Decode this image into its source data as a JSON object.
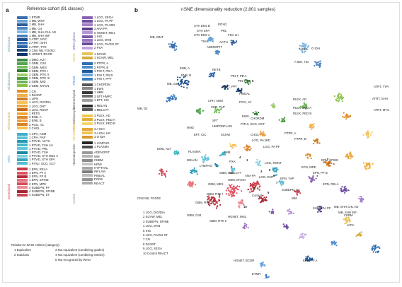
{
  "panel_a": {
    "letter": "a",
    "title": "Reference cohort (91 classes)",
    "groups": [
      {
        "name": "Embryonal",
        "color": "#5fa3a8",
        "col": 0,
        "top": 15,
        "height": 48
      },
      {
        "name": "Glioblastoma",
        "color": "#5fa3a8",
        "col": 0,
        "top": 73,
        "height": 45
      },
      {
        "name": "Glioneuronal",
        "color": "#e09a3a",
        "col": 0,
        "top": 126,
        "height": 48
      },
      {
        "name": "Sella",
        "color": "#4aa0d8",
        "col": 0,
        "top": 180,
        "height": 40
      },
      {
        "name": "Ependymal",
        "color": "#d6404f",
        "col": 0,
        "top": 228,
        "height": 44
      },
      {
        "name": "Other glioma",
        "color": "#7a5fa8",
        "col": 1,
        "top": 15,
        "height": 46
      },
      {
        "name": "Nerve",
        "color": "#e0b248",
        "col": 1,
        "top": 65,
        "height": 12
      },
      {
        "name": "Pineal",
        "color": "#3e85c8",
        "col": 1,
        "top": 85,
        "height": 25
      },
      {
        "name": "Mesenchymal",
        "color": "#4a4a4a",
        "col": 1,
        "top": 116,
        "height": 28
      },
      {
        "name": "Melanocytic",
        "color": "#4a4a4a",
        "col": 1,
        "top": 145,
        "height": 20
      },
      {
        "name": "Plexus",
        "color": "#e0b248",
        "col": 1,
        "top": 162,
        "height": 14
      },
      {
        "name": "Glioma IDH",
        "color": "#e0b248",
        "col": 1,
        "top": 177,
        "height": 12
      },
      {
        "name": "Haematopoietic",
        "color": "#4a4a4a",
        "col": 1,
        "top": 196,
        "height": 28
      },
      {
        "name": "Control",
        "color": "#8c8c8c",
        "col": 1,
        "top": 226,
        "height": 52
      }
    ],
    "col0": [
      {
        "n": "1",
        "label": "ETMR",
        "color": "#3a6fb0"
      },
      {
        "n": "1",
        "label": "MB, WNT",
        "color": "#6aa4d8"
      },
      {
        "n": "1",
        "label": "MB, SHH",
        "color": "#2e5d9a"
      },
      {
        "n": "1",
        "label": "MB, G4",
        "color": "#5289c4"
      },
      {
        "n": "1",
        "label": "MB, SHH CHL AD",
        "color": "#7fb7e2"
      },
      {
        "n": "1",
        "label": "MB, SHH INF",
        "color": "#4a7fbe"
      },
      {
        "n": "2",
        "label": "ATRT, MYC",
        "color": "#1e4f8a"
      },
      {
        "n": "2",
        "label": "ATRT, SHH",
        "color": "#3574ba"
      },
      {
        "n": "2",
        "label": "ATRT, TYR",
        "color": "#2f65a6"
      },
      {
        "n": "3",
        "label": "CNS NB, FOXR2",
        "color": "#154173"
      },
      {
        "n": "5",
        "label": "HGNET, BCOR",
        "color": "#0d3366"
      },
      {
        "n": "",
        "label": "",
        "color": ""
      },
      {
        "n": "1",
        "label": "DMG, K27",
        "color": "#3d8a3f"
      },
      {
        "n": "2",
        "label": "GBM, G34",
        "color": "#55a64f"
      },
      {
        "n": "2",
        "label": "GBM, MES",
        "color": "#78bd5c"
      },
      {
        "n": "2",
        "label": "GBM, RTK I",
        "color": "#2f7a33"
      },
      {
        "n": "2",
        "label": "GBM, RTK II",
        "color": "#9ccd6e"
      },
      {
        "n": "2",
        "label": "GBM, RTK III",
        "color": "#4e9c40"
      },
      {
        "n": "2",
        "label": "GBM, MID",
        "color": "#6cb45a"
      },
      {
        "n": "2",
        "label": "GBM, MYCN",
        "color": "#8bc34a"
      },
      {
        "n": "",
        "label": "",
        "color": ""
      },
      {
        "n": "1",
        "label": "CN",
        "color": "#e0902a"
      },
      {
        "n": "1",
        "label": "DLGNT",
        "color": "#f0b043"
      },
      {
        "n": "1",
        "label": "LIPN",
        "color": "#d27a20"
      },
      {
        "n": "1",
        "label": "LGG, DIG/DIA",
        "color": "#f5c45a"
      },
      {
        "n": "1",
        "label": "LGG, DNT",
        "color": "#e8a53b"
      },
      {
        "n": "1",
        "label": "LGG, RGNT",
        "color": "#c96c18"
      },
      {
        "n": "1",
        "label": "RETB",
        "color": "#f2a93a"
      },
      {
        "n": "2",
        "label": "ENB, A",
        "color": "#dd8a2a"
      },
      {
        "n": "2",
        "label": "ENB, B",
        "color": "#eba044"
      },
      {
        "n": "2",
        "label": "PGG, nC",
        "color": "#d98328"
      },
      {
        "n": "2",
        "label": "CHGL",
        "color": "#f7c14f"
      },
      {
        "n": "",
        "label": "",
        "color": ""
      },
      {
        "n": "1",
        "label": "CPH, ADM",
        "color": "#3fb0c9"
      },
      {
        "n": "1",
        "label": "CPH, PAP",
        "color": "#5cc0d7"
      },
      {
        "n": "1",
        "label": "PITAD, ACTH",
        "color": "#2a9bb6"
      },
      {
        "n": "1",
        "label": "PITAD, FSH LH",
        "color": "#45b6c8"
      },
      {
        "n": "1",
        "label": "PITAD, PRL",
        "color": "#66c6da"
      },
      {
        "n": "1",
        "label": "PITAD, TSH",
        "color": "#1f8aa3"
      },
      {
        "n": "1",
        "label": "PITAD, STH DNS A",
        "color": "#7fd0df"
      },
      {
        "n": "1",
        "label": "PITAD, STH SPA",
        "color": "#3aa5bd"
      },
      {
        "n": "1",
        "label": "PITUI, SCO, GCT",
        "color": "#56bccf"
      },
      {
        "n": "",
        "label": "",
        "color": ""
      },
      {
        "n": "1",
        "label": "EPN, RELA",
        "color": "#c83a47"
      },
      {
        "n": "1",
        "label": "EPN, PF A",
        "color": "#e05262"
      },
      {
        "n": "2",
        "label": "EPN, PF B",
        "color": "#b82d3a"
      },
      {
        "n": "1",
        "label": "EPN, SPINE",
        "color": "#e8707c"
      },
      {
        "n": "2",
        "label": "EPN, MPE",
        "color": "#d44a58"
      },
      {
        "n": "4",
        "label": "SUBEPN, PF",
        "color": "#f08a95"
      },
      {
        "n": "4",
        "label": "SUBEPN, SPINE",
        "color": "#a82532"
      },
      {
        "n": "4",
        "label": "SUBEPN, ST",
        "color": "#cc4352"
      }
    ],
    "col1": [
      {
        "n": "1",
        "label": "LGG, SEGA",
        "color": "#8a63b3"
      },
      {
        "n": "1",
        "label": "LGG, PA PF",
        "color": "#6d4ea0"
      },
      {
        "n": "1",
        "label": "LGG, PA MID",
        "color": "#a27ec7"
      },
      {
        "n": "2",
        "label": "ANA PA",
        "color": "#5c3f8e"
      },
      {
        "n": "5",
        "label": "HGNET, MN1",
        "color": "#b496d6"
      },
      {
        "n": "1",
        "label": "IHG",
        "color": "#7d58ab"
      },
      {
        "n": "1",
        "label": "LGG, MYB",
        "color": "#9a74c2"
      },
      {
        "n": "1",
        "label": "LGG, PA/GG ST",
        "color": "#6a4a9a"
      },
      {
        "n": "2",
        "label": "PXA",
        "color": "#c3a6e0"
      },
      {
        "n": "",
        "label": "",
        "color": ""
      },
      {
        "n": "1",
        "label": "SCHW",
        "color": "#e8c35a"
      },
      {
        "n": "1",
        "label": "SCHW, MEL",
        "color": "#d4ad3e"
      },
      {
        "n": "",
        "label": "",
        "color": ""
      },
      {
        "n": "2",
        "label": "PTPR, A",
        "color": "#2f6fb3"
      },
      {
        "n": "2",
        "label": "PTPR, B",
        "color": "#4a8bcb"
      },
      {
        "n": "1",
        "label": "PIN T, PB A",
        "color": "#1f5a9a"
      },
      {
        "n": "1",
        "label": "PIN T, PB B",
        "color": "#6aa3d9"
      },
      {
        "n": "1",
        "label": "PIN T, PPT",
        "color": "#3a7ec0"
      },
      {
        "n": "",
        "label": "",
        "color": ""
      },
      {
        "n": "1",
        "label": "CHORDM",
        "color": "#555555"
      },
      {
        "n": "1",
        "label": "EWS",
        "color": "#8a8a8a"
      },
      {
        "n": "1",
        "label": "HMB",
        "color": "#3a3a3a"
      },
      {
        "n": "3",
        "label": "SFT HMPC",
        "color": "#6f6f6f"
      },
      {
        "n": "1",
        "label": "EFT, CIC",
        "color": "#a0a0a0"
      },
      {
        "n": "",
        "label": "",
        "color": ""
      },
      {
        "n": "1",
        "label": "MELAN",
        "color": "#2b2b2b"
      },
      {
        "n": "1",
        "label": "MELCYT",
        "color": "#5a5a5a"
      },
      {
        "n": "",
        "label": "",
        "color": ""
      },
      {
        "n": "3",
        "label": "PLEX, AD",
        "color": "#f0c64a"
      },
      {
        "n": "3",
        "label": "PLEX, PED A",
        "color": "#e0b03a"
      },
      {
        "n": "3",
        "label": "PLEX, PED B",
        "color": "#f5d46e"
      },
      {
        "n": "",
        "label": "",
        "color": ""
      },
      {
        "n": "3",
        "label": "A IDH",
        "color": "#e3a73a"
      },
      {
        "n": "3",
        "label": "A IDH, HG",
        "color": "#f1c150"
      },
      {
        "n": "3",
        "label": "O IDH",
        "color": "#d89a2c"
      },
      {
        "n": "",
        "label": "",
        "color": ""
      },
      {
        "n": "1",
        "label": "LYMPHO",
        "color": "#262626"
      },
      {
        "n": "1",
        "label": "PLASMA",
        "color": "#4d4d4d"
      },
      {
        "n": "",
        "label": "",
        "color": ""
      },
      {
        "n": "",
        "label": "ADENOPIT",
        "color": "#9a9a9a"
      },
      {
        "n": "",
        "label": "WM",
        "color": "#b5b5b5"
      },
      {
        "n": "",
        "label": "CEBM",
        "color": "#8c8c8c"
      },
      {
        "n": "",
        "label": "HEMI",
        "color": "#c4c4c4"
      },
      {
        "n": "",
        "label": "HYPTHAL",
        "color": "#a6a6a6"
      },
      {
        "n": "",
        "label": "INFLAM",
        "color": "#7d7d7d"
      },
      {
        "n": "",
        "label": "PINEAL",
        "color": "#bdbdbd"
      },
      {
        "n": "",
        "label": "PONS",
        "color": "#959595"
      },
      {
        "n": "",
        "label": "REACT",
        "color": "#adadad"
      }
    ],
    "legend": {
      "title": "Relation to WHO entities (category):",
      "rows": [
        {
          "text": "1  Equivalent"
        },
        {
          "text": "3  Not equivalent (combining grades)"
        },
        {
          "text": "2  Subclass"
        },
        {
          "text": "4  Not equivalent (combining entities)"
        },
        {
          "text": "5  Not recognized by WHO"
        }
      ]
    }
  },
  "panel_b": {
    "letter": "b",
    "title_prefix": "t",
    "title_rest": "-SNE dimensionality reduction (2,801 samples)",
    "key": [
      "1  LGG, DIG/DIA",
      "2  SCHW, MEL",
      "3  SUBEPN, SPINE",
      "4  LGG, MYB",
      "5  IHG",
      "6  LGG, PA/GG ST",
      "7  CN",
      "8  DLGNT",
      "9  LGG, SEGA",
      "10  Control REACT"
    ],
    "labels": [
      "MB, WNT",
      "STH DNS B",
      "PITAD",
      "STH SPA",
      "STH DNS A",
      "PRL",
      "FSH LH",
      "TSH",
      "ACTH",
      "ADENOPIT",
      "A IDH",
      "O IDH",
      "A IDH, HG",
      "ENB, A",
      "ENB, B",
      "MB, G3",
      "MB, G4",
      "RETB",
      "PIN T, PB A",
      "PIN T, PPT",
      "PIN T, PB B",
      "PINEAL",
      "CPH, ADM",
      "CPH, PAP",
      "PGG, nC",
      "PLEX, AD",
      "ATRT, TYR",
      "PLEX, PED A",
      "PLEX, PED B",
      "ATRT, SHH",
      "ATRT, MYC",
      "PITUI, SCO, GCT",
      "EWS",
      "CHORDM",
      "SFT",
      "HMPC",
      "SCHW",
      "INFLAM",
      "CHGL",
      "MNG",
      "EFT, CIC",
      "PTPR, A",
      "LGG, PA MID",
      "PTPR, B",
      "LGG, PA PF",
      "HMB",
      "DMG, K27",
      "PXA",
      "PLASMA",
      "MELAN",
      "LYMPHO",
      "MELCYT",
      "ANA PA",
      "LGG, RGNT",
      "EPN, YAP",
      "EPN, MPE",
      "EPN, SPINE",
      "EPN, PF B",
      "EPN, RELA",
      "LGG, DNT",
      "SUBEPN, ST",
      "GBM, MID",
      "GBM, MYCN",
      "GBM, MES",
      "CNS NB, FOXR2",
      "GBM, RTK I",
      "HGNET, MN1",
      "Control",
      "WM",
      "GBM, RTK III",
      "SUBEPN, PF",
      "GBM, G34",
      "GBM, RTK II",
      "CEBM",
      "LIPN",
      "MB, SHH CHL AD",
      "MB, SHH INF",
      "HGNET, BCOR",
      "EPN, PF A",
      "ETMR"
    ],
    "numeric_labels": [
      "4",
      "1",
      "2",
      "3",
      "5",
      "6",
      "7",
      "8",
      "9",
      "10"
    ]
  }
}
